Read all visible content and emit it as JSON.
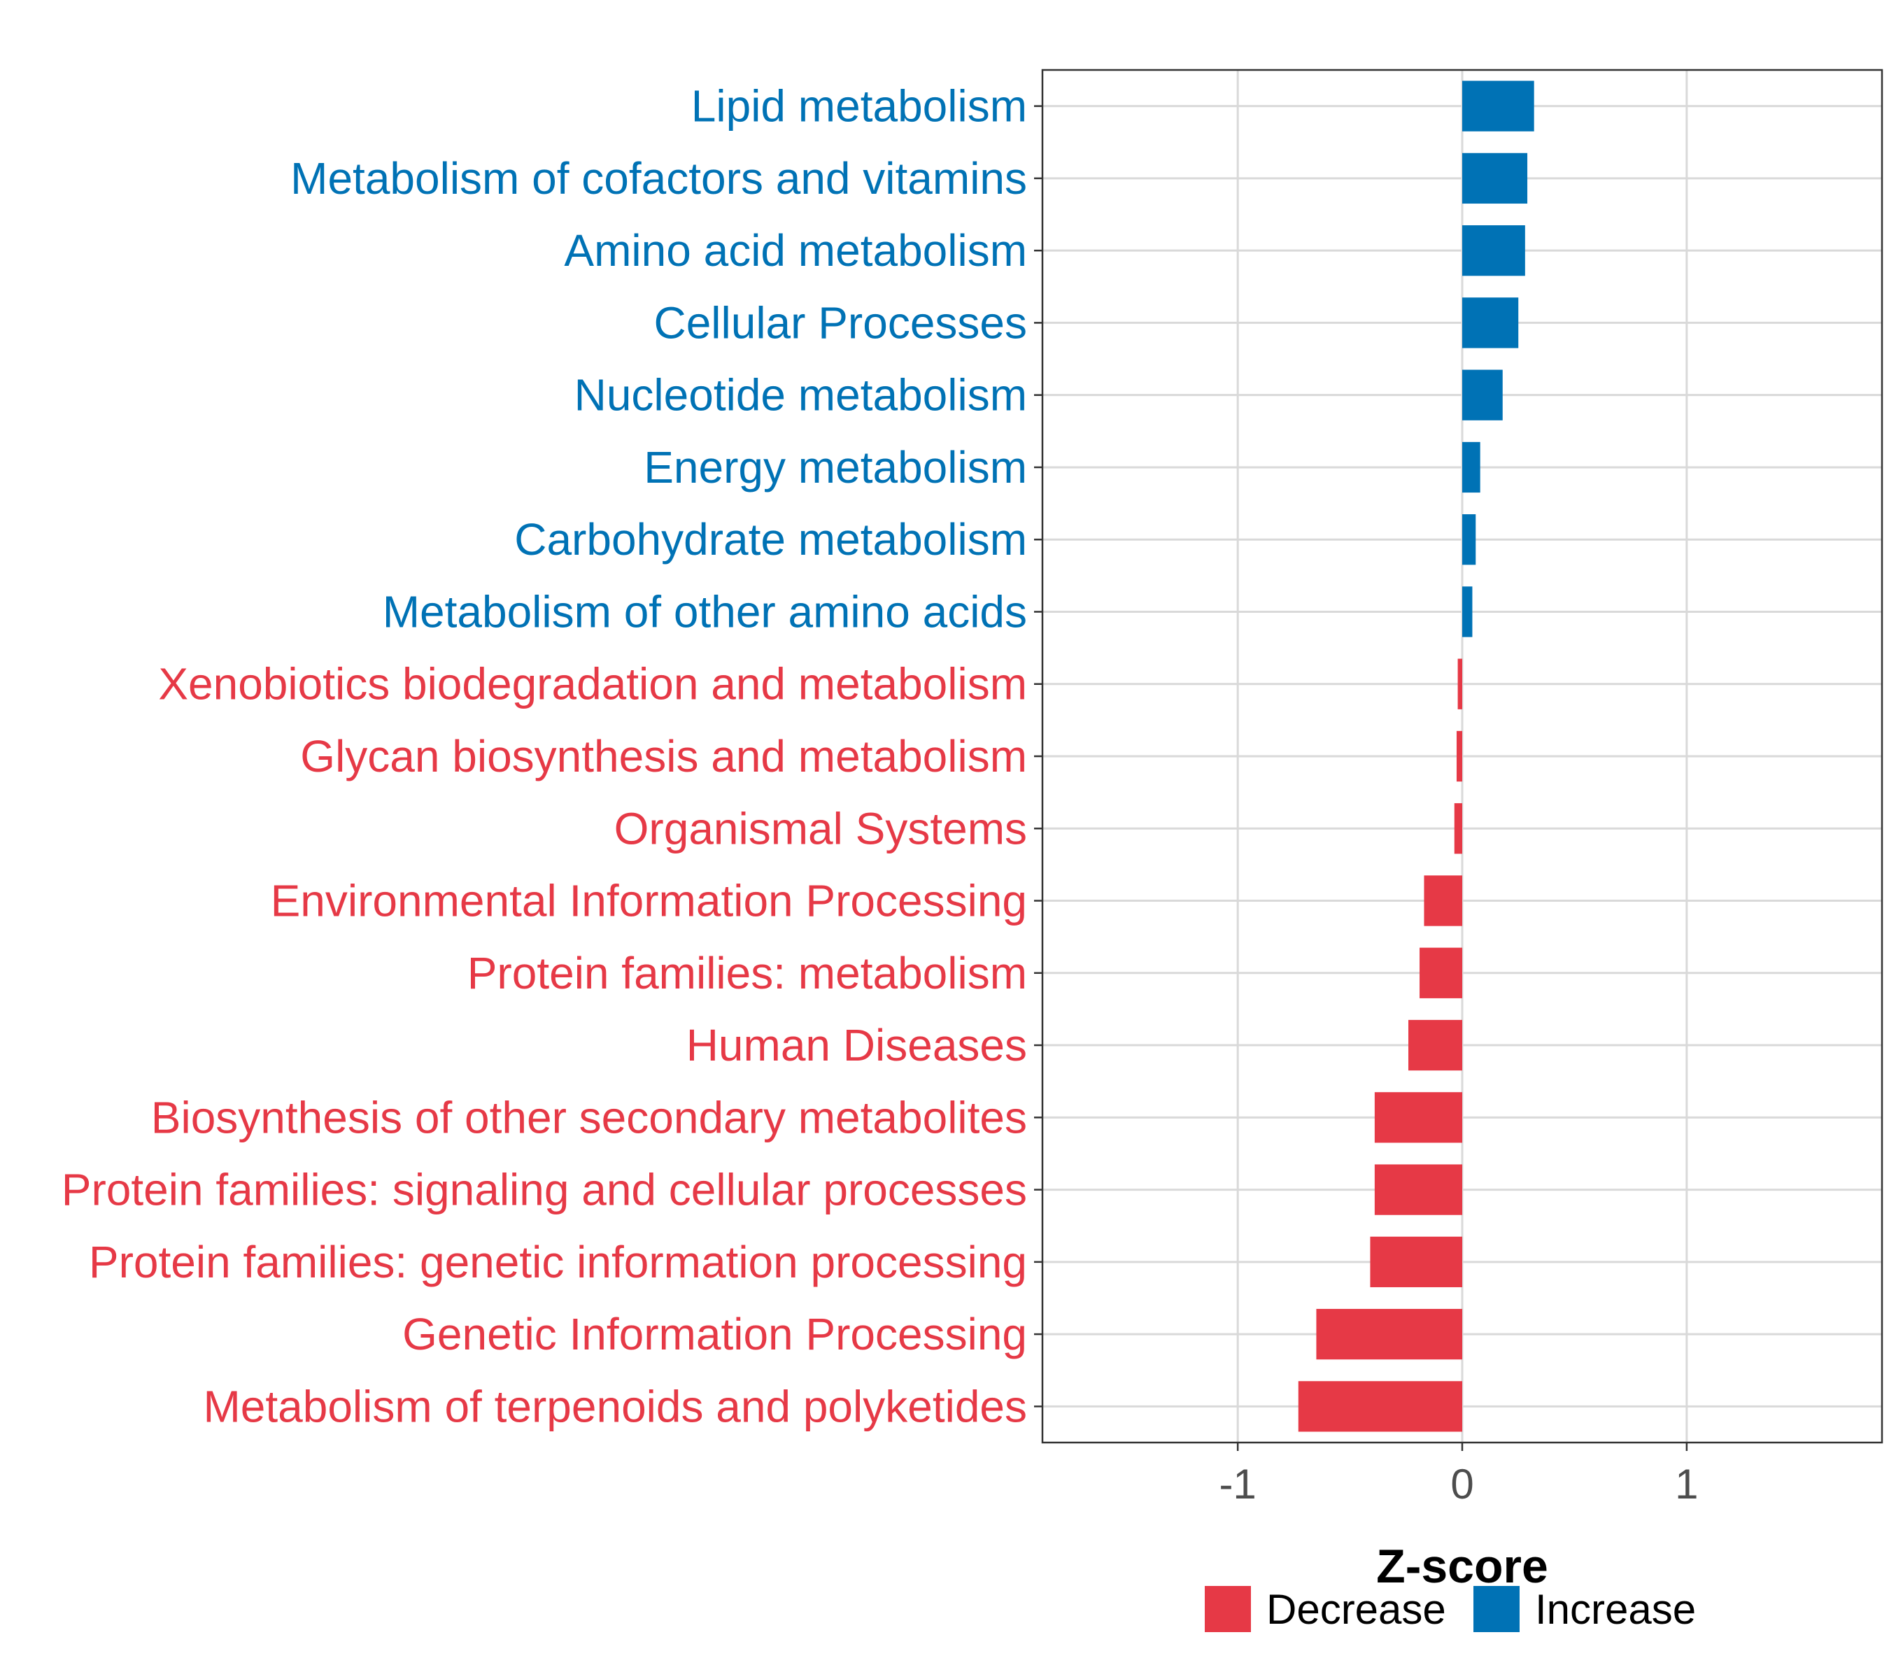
{
  "chart_data": {
    "type": "bar",
    "orientation": "horizontal",
    "xlabel": "Z-score",
    "xlim": [
      -1.87,
      1.87
    ],
    "xticks": [
      -1,
      0,
      1
    ],
    "xtick_labels": [
      "-1",
      "0",
      "1"
    ],
    "grid": true,
    "legend_position": "bottom",
    "legend": [
      {
        "name": "Decrease",
        "color": "#E63946"
      },
      {
        "name": "Increase",
        "color": "#0072B5"
      }
    ],
    "categories": [
      "Lipid metabolism",
      "Metabolism of cofactors and vitamins",
      "Amino acid metabolism",
      "Cellular Processes",
      "Nucleotide metabolism",
      "Energy metabolism",
      "Carbohydrate metabolism",
      "Metabolism of other amino acids",
      "Xenobiotics biodegradation and metabolism",
      "Glycan biosynthesis and metabolism",
      "Organismal Systems",
      "Environmental Information Processing",
      "Protein families: metabolism",
      "Human Diseases",
      "Biosynthesis of other secondary metabolites",
      "Protein families: signaling and cellular processes",
      "Protein families: genetic information processing",
      "Genetic Information Processing",
      "Metabolism of terpenoids and polyketides"
    ],
    "values": [
      0.32,
      0.29,
      0.28,
      0.25,
      0.18,
      0.08,
      0.06,
      0.045,
      -0.02,
      -0.025,
      -0.035,
      -0.17,
      -0.19,
      -0.24,
      -0.39,
      -0.39,
      -0.41,
      -0.65,
      -0.73
    ],
    "groups": [
      "Increase",
      "Increase",
      "Increase",
      "Increase",
      "Increase",
      "Increase",
      "Increase",
      "Increase",
      "Decrease",
      "Decrease",
      "Decrease",
      "Decrease",
      "Decrease",
      "Decrease",
      "Decrease",
      "Decrease",
      "Decrease",
      "Decrease",
      "Decrease"
    ]
  }
}
